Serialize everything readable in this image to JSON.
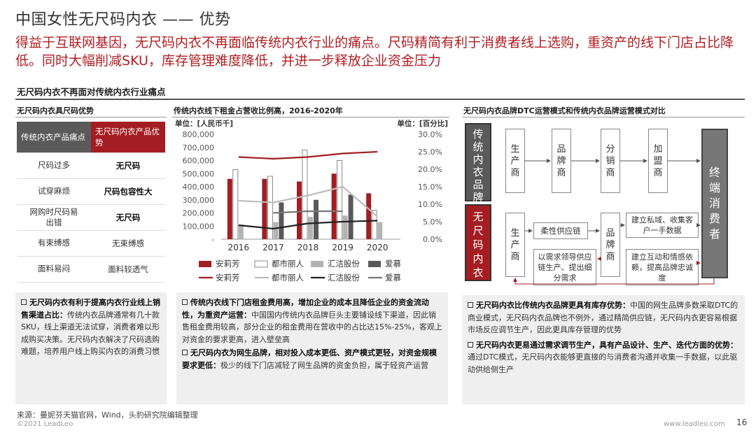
{
  "header": {
    "title": "中国女性无尺码内衣 —— 优势",
    "subtitle": "得益于互联网基因，无尺码内衣不再面临传统内衣行业的痛点。尺码精简有利于消费者线上选购，重资产的线下门店占比降低。同时大幅削减SKU，库存管理难度降低，并进一步释放企业资金压力"
  },
  "section_title": "无尺码内衣不再面对传统内衣行业痛点",
  "left_panel": {
    "title": "无尺码内衣具尺码优势",
    "col1_header": "传统内衣产品痛点",
    "col2_header": "无尺码内衣产品优势",
    "rows": [
      {
        "pain": "尺码过多",
        "adv": "无尺码",
        "bold": true
      },
      {
        "pain": "试穿麻烦",
        "adv": "尺码包容性大",
        "bold": true
      },
      {
        "pain": "网购时尺码易出错",
        "adv": "无尺码",
        "bold": true
      },
      {
        "pain": "有束缚感",
        "adv": "无束缚感",
        "bold": false
      },
      {
        "pain": "面料易闷",
        "adv": "面料较透气",
        "bold": false
      }
    ],
    "note_bold": "无尺码内衣有利于提高内衣行业线上销售渠道占比：",
    "note_text": "传统内衣品牌通常有几十款SKU，线上渠道无法试穿，消费者难以形成购买决策。无尺码内衣解决了尺码选购难题，培养用户线上购买内衣的消费习惯"
  },
  "mid_panel": {
    "title": "传统内衣线下租金占营收比例高，增加企业的成本且降低企业的资金流动性，为重资产运营：",
    "chart_title": "传统内衣线下租金占营收比例高，2016-2020年",
    "note1_bold": "传统内衣线下门店租金费用高，增加企业的成本且降低企业的资金流动性，为重资产运营：",
    "note1_text": "中国国内传统内衣品牌巨头主要铺设线下渠道，因此销售租金费用较高，部分企业的租金费用在营收中的占比达15%-25%，客观上对资金的要求更高，进入壁垒高",
    "note2_bold": "无尺码内衣为网生品牌，相对投入成本更低、资产模式更轻，对资金规模要求更低：",
    "note2_text": "极少的线下门店减轻了网生品牌的资金负担，属于轻资产运营"
  },
  "chart_data": {
    "type": "bar",
    "title": "传统内衣线下租金占营收比例高，2016-2020年",
    "ylabel_left": "单位：[人民币千]",
    "ylabel_right": "单位：[百分比]",
    "categories": [
      "2016",
      "2017",
      "2018",
      "2019",
      "2020"
    ],
    "ylim_left": [
      0,
      800000
    ],
    "yticks_left": [
      "800,000",
      "700,000",
      "600,000",
      "500,000",
      "400,000",
      "300,000",
      "200,000",
      "100,000",
      "-"
    ],
    "ylim_right": [
      0,
      30
    ],
    "yticks_right": [
      "30.0%",
      "25.0%",
      "20.0%",
      "15.0%",
      "10.0%",
      "5.0%",
      "0.0%"
    ],
    "bar_series": [
      {
        "name": "安莉芳",
        "color": "#a31d22",
        "fill": "solid",
        "values": [
          460000,
          460000,
          440000,
          500000,
          350000
        ]
      },
      {
        "name": "都市丽人",
        "color": "#ffffff",
        "fill": "outline",
        "values": [
          530000,
          480000,
          680000,
          600000,
          220000
        ]
      },
      {
        "name": "汇洁股份",
        "color": "#b3b3b3",
        "fill": "solid",
        "values": [
          110000,
          130000,
          170000,
          180000,
          130000
        ]
      },
      {
        "name": "爱慕",
        "color": "#595959",
        "fill": "solid",
        "values": [
          0,
          280000,
          300000,
          340000,
          0
        ]
      }
    ],
    "line_series": [
      {
        "name": "安莉芳",
        "color": "#a31d22",
        "values": [
          23.5,
          23.0,
          23.5,
          24.5,
          25.0
        ]
      },
      {
        "name": "都市丽人",
        "color": "#bdbdbd",
        "values": [
          11.0,
          10.5,
          12.5,
          15.0,
          6.5
        ]
      },
      {
        "name": "汇洁股份",
        "color": "#222222",
        "values": [
          4.0,
          3.0,
          4.5,
          5.0,
          5.3
        ]
      },
      {
        "name": "爱慕",
        "color": "#777777",
        "values": [
          null,
          7.5,
          8.0,
          8.0,
          null
        ]
      }
    ],
    "grid": false,
    "legend": "bottom"
  },
  "right_panel": {
    "title": "无尺码内衣品牌DTC运营模式和传统内衣品牌运营模式对比",
    "trad_label": "传统内衣品牌",
    "nosize_label": "无尺码内衣",
    "trad_steps": [
      "生产商",
      "品牌商",
      "分销商",
      "加盟商"
    ],
    "end_label": "终端消费者",
    "dtc_producer": "生产商",
    "dtc_brand": "品牌商",
    "flex_supply": "柔性供应链",
    "demand_box": "以需求领导供应链生产、提出细分需求",
    "private_box": "建立私域、收集客户一手数据",
    "interact_box": "建立互动和情感依赖，提高品牌忠诚度",
    "note1_bold": "无尺码内衣比传统内衣品牌更具有库存优势：",
    "note1_text": "中国的网生品牌多数采取DTC的商业模式，无尺码内衣品牌也不例外，通过精简供应链，无尺码内衣更容易根据市场反应调节生产，因此更具库存管理的优势",
    "note2_bold": "无尺码内衣更易通过需求调节生产，具有产品设计、生产、迭代方面的优势：",
    "note2_text": "通过DTC模式，无尺码内衣能够更直接的与消费者沟通并收集一手数据，以此驱动供给侧生产"
  },
  "footer": {
    "source": "来源：曼妮芬天猫官网，Wind，头豹研究院编辑整理",
    "copyright": "©2021 LeadLeo",
    "website": "www.leadleo.com",
    "page_number": "16"
  }
}
